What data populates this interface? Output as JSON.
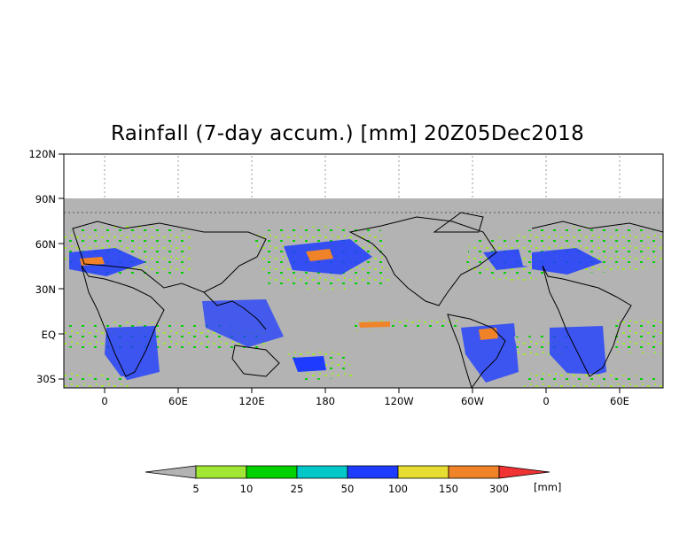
{
  "title": "Rainfall (7-day accum.) [mm] 20Z05Dec2018",
  "map": {
    "lat_ticks": [
      "120N",
      "90N",
      "60N",
      "30N",
      "EQ",
      "30S"
    ],
    "lon_ticks": [
      "0",
      "60E",
      "120E",
      "180",
      "120W",
      "60W",
      "0",
      "60E"
    ],
    "no_data_color": "#b3b3b3",
    "land_outline_color": "#000000"
  },
  "colorbar": {
    "labels": [
      "5",
      "10",
      "25",
      "50",
      "100",
      "150",
      "300"
    ],
    "unit": "[mm]",
    "colors": [
      "#b3b3b3",
      "#a0e632",
      "#00d200",
      "#00c8c8",
      "#1e3cff",
      "#e6dc32",
      "#f08228",
      "#f03232"
    ]
  }
}
